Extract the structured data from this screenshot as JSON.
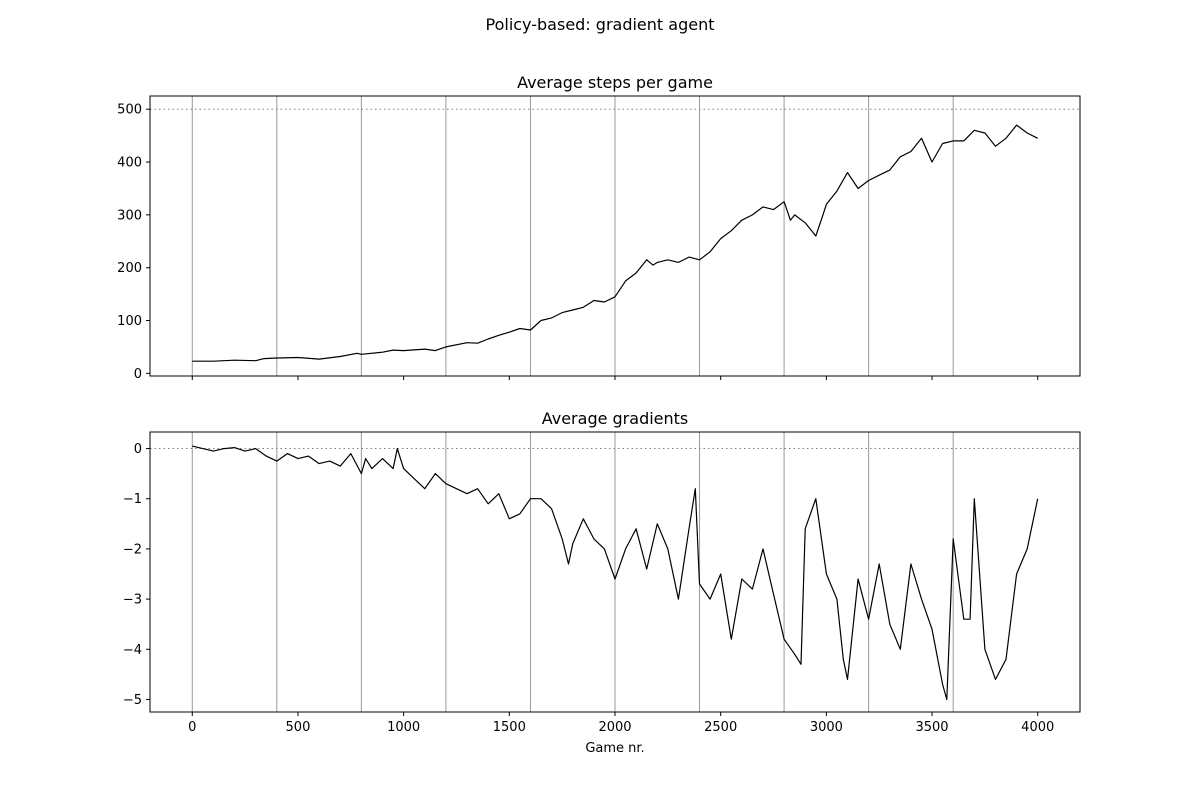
{
  "figure": {
    "suptitle": "Policy-based: gradient agent"
  },
  "colors": {
    "line": "#000000",
    "vline": "#999999",
    "hline": "#808080",
    "frame": "#000000",
    "background": "#ffffff"
  },
  "chart_data": [
    {
      "type": "line",
      "title": "Average steps per game",
      "xlabel": "",
      "ylabel": "",
      "xlim": [
        -200,
        4200
      ],
      "ylim": [
        -5,
        525
      ],
      "xticks": [
        0,
        500,
        1000,
        1500,
        2000,
        2500,
        3000,
        3500,
        4000
      ],
      "xtick_labels_visible": false,
      "yticks": [
        0,
        100,
        200,
        300,
        400,
        500
      ],
      "ytick_labels": [
        "0",
        "100",
        "200",
        "300",
        "400",
        "500"
      ],
      "grid": false,
      "vlines": [
        0,
        400,
        800,
        1200,
        1600,
        2000,
        2400,
        2800,
        3200,
        3600
      ],
      "hline": {
        "y": 500,
        "style": "dotted"
      },
      "series": [
        {
          "x": [
            0,
            100,
            200,
            300,
            340,
            400,
            500,
            600,
            700,
            780,
            800,
            900,
            950,
            1000,
            1100,
            1150,
            1200,
            1300,
            1350,
            1400,
            1450,
            1500,
            1550,
            1600,
            1650,
            1700,
            1750,
            1800,
            1850,
            1900,
            1950,
            2000,
            2050,
            2100,
            2150,
            2180,
            2200,
            2250,
            2300,
            2350,
            2400,
            2450,
            2500,
            2550,
            2600,
            2650,
            2700,
            2750,
            2800,
            2830,
            2850,
            2900,
            2950,
            2980,
            3000,
            3050,
            3100,
            3150,
            3200,
            3250,
            3300,
            3350,
            3400,
            3450,
            3500,
            3550,
            3600,
            3650,
            3700,
            3750,
            3800,
            3850,
            3900,
            3950,
            4000
          ],
          "y": [
            23,
            23,
            25,
            24,
            28,
            29,
            30,
            27,
            32,
            38,
            36,
            40,
            44,
            43,
            46,
            43,
            50,
            58,
            57,
            65,
            72,
            78,
            85,
            82,
            100,
            105,
            115,
            120,
            125,
            138,
            135,
            145,
            175,
            190,
            215,
            205,
            210,
            215,
            210,
            220,
            215,
            230,
            255,
            270,
            290,
            300,
            315,
            310,
            325,
            290,
            300,
            285,
            260,
            295,
            320,
            345,
            380,
            350,
            365,
            375,
            385,
            410,
            420,
            445,
            400,
            435,
            440,
            440,
            460,
            455,
            430,
            445,
            470,
            455,
            445
          ]
        }
      ]
    },
    {
      "type": "line",
      "title": "Average gradients",
      "xlabel": "Game nr.",
      "ylabel": "",
      "xlim": [
        -200,
        4200
      ],
      "ylim": [
        -5.25,
        0.33
      ],
      "xticks": [
        0,
        500,
        1000,
        1500,
        2000,
        2500,
        3000,
        3500,
        4000
      ],
      "xtick_labels": [
        "0",
        "500",
        "1000",
        "1500",
        "2000",
        "2500",
        "3000",
        "3500",
        "4000"
      ],
      "yticks": [
        0,
        -1,
        -2,
        -3,
        -4,
        -5
      ],
      "ytick_labels": [
        "0",
        "−1",
        "−2",
        "−3",
        "−4",
        "−5"
      ],
      "grid": false,
      "vlines": [
        0,
        400,
        800,
        1200,
        1600,
        2000,
        2400,
        2800,
        3200,
        3600
      ],
      "hline": {
        "y": 0,
        "style": "dotted"
      },
      "series": [
        {
          "x": [
            0,
            50,
            100,
            150,
            200,
            250,
            300,
            350,
            400,
            450,
            500,
            550,
            600,
            650,
            700,
            750,
            800,
            820,
            850,
            900,
            950,
            970,
            1000,
            1050,
            1100,
            1150,
            1200,
            1250,
            1300,
            1350,
            1400,
            1450,
            1500,
            1550,
            1600,
            1650,
            1700,
            1750,
            1780,
            1800,
            1850,
            1900,
            1950,
            2000,
            2050,
            2100,
            2150,
            2200,
            2250,
            2300,
            2350,
            2380,
            2400,
            2450,
            2500,
            2550,
            2600,
            2650,
            2700,
            2750,
            2800,
            2850,
            2880,
            2900,
            2950,
            3000,
            3050,
            3080,
            3100,
            3150,
            3200,
            3250,
            3300,
            3350,
            3400,
            3450,
            3500,
            3550,
            3570,
            3600,
            3650,
            3680,
            3700,
            3750,
            3800,
            3850,
            3900,
            3950,
            4000
          ],
          "y": [
            0.05,
            0.0,
            -0.05,
            0.0,
            0.02,
            -0.05,
            0.0,
            -0.15,
            -0.25,
            -0.1,
            -0.2,
            -0.15,
            -0.3,
            -0.25,
            -0.35,
            -0.1,
            -0.5,
            -0.2,
            -0.4,
            -0.2,
            -0.4,
            0.0,
            -0.4,
            -0.6,
            -0.8,
            -0.5,
            -0.7,
            -0.8,
            -0.9,
            -0.8,
            -1.1,
            -0.9,
            -1.4,
            -1.3,
            -1.0,
            -1.0,
            -1.2,
            -1.8,
            -2.3,
            -1.9,
            -1.4,
            -1.8,
            -2.0,
            -2.6,
            -2.0,
            -1.6,
            -2.4,
            -1.5,
            -2.0,
            -3.0,
            -1.6,
            -0.8,
            -2.7,
            -3.0,
            -2.5,
            -3.8,
            -2.6,
            -2.8,
            -2.0,
            -2.9,
            -3.8,
            -4.1,
            -4.3,
            -1.6,
            -1.0,
            -2.5,
            -3.0,
            -4.2,
            -4.6,
            -2.6,
            -3.4,
            -2.3,
            -3.5,
            -4.0,
            -2.3,
            -3.0,
            -3.6,
            -4.7,
            -5.0,
            -1.8,
            -3.4,
            -3.4,
            -1.0,
            -4.0,
            -4.6,
            -4.2,
            -2.5,
            -2.0,
            -1.0
          ]
        }
      ]
    }
  ]
}
